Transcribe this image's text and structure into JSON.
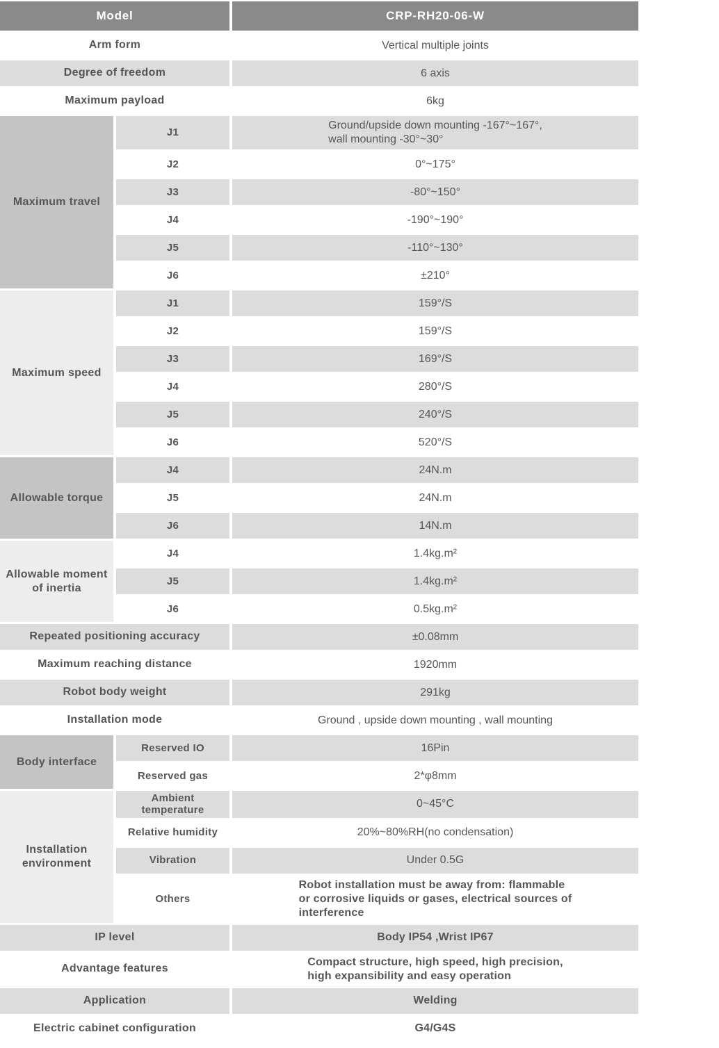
{
  "colors": {
    "header_bg": "#8a8a8a",
    "header_text": "#ffffff",
    "row_gray": "#dcdcdc",
    "row_white": "#ffffff",
    "group_label_medium": "#c4c4c5",
    "group_label_light": "#ededee",
    "text": "#55565a"
  },
  "spec_table": {
    "header": {
      "label": "Model",
      "value": "CRP-RH20-06-W"
    },
    "sections": [
      {
        "kind": "row",
        "label": "Arm form",
        "value": "Vertical multiple joints",
        "shade": "white"
      },
      {
        "kind": "row",
        "label": "Degree of freedom",
        "value": "6 axis",
        "shade": "gray"
      },
      {
        "kind": "row",
        "label": "Maximum payload",
        "value": "6kg",
        "shade": "white"
      },
      {
        "kind": "group",
        "label": "Maximum travel",
        "label_shade": "med",
        "rows": [
          {
            "sub": "J1",
            "value": "Ground/upside down mounting -167°~167°,\nwall mounting -30°~30°",
            "shade": "gray"
          },
          {
            "sub": "J2",
            "value": "0°~175°",
            "shade": "white"
          },
          {
            "sub": "J3",
            "value": "-80°~150°",
            "shade": "gray"
          },
          {
            "sub": "J4",
            "value": "-190°~190°",
            "shade": "white"
          },
          {
            "sub": "J5",
            "value": "-110°~130°",
            "shade": "gray"
          },
          {
            "sub": "J6",
            "value": "±210°",
            "shade": "white"
          }
        ]
      },
      {
        "kind": "group",
        "label": "Maximum speed",
        "label_shade": "light",
        "rows": [
          {
            "sub": "J1",
            "value": "159°/S",
            "shade": "gray"
          },
          {
            "sub": "J2",
            "value": "159°/S",
            "shade": "white"
          },
          {
            "sub": "J3",
            "value": "169°/S",
            "shade": "gray"
          },
          {
            "sub": "J4",
            "value": "280°/S",
            "shade": "white"
          },
          {
            "sub": "J5",
            "value": "240°/S",
            "shade": "gray"
          },
          {
            "sub": "J6",
            "value": "520°/S",
            "shade": "white"
          }
        ]
      },
      {
        "kind": "group",
        "label": "Allowable torque",
        "label_shade": "med",
        "rows": [
          {
            "sub": "J4",
            "value": "24N.m",
            "shade": "gray"
          },
          {
            "sub": "J5",
            "value": "24N.m",
            "shade": "white"
          },
          {
            "sub": "J6",
            "value": "14N.m",
            "shade": "gray"
          }
        ]
      },
      {
        "kind": "group",
        "label": "Allowable moment of inertia",
        "label_shade": "light",
        "rows": [
          {
            "sub": "J4",
            "value": "1.4kg.m²",
            "shade": "white"
          },
          {
            "sub": "J5",
            "value": "1.4kg.m²",
            "shade": "gray"
          },
          {
            "sub": "J6",
            "value": "0.5kg.m²",
            "shade": "white"
          }
        ]
      },
      {
        "kind": "row",
        "label": "Repeated positioning accuracy",
        "value": "±0.08mm",
        "shade": "gray"
      },
      {
        "kind": "row",
        "label": "Maximum reaching distance",
        "value": "1920mm",
        "shade": "white"
      },
      {
        "kind": "row",
        "label": "Robot body weight",
        "value": "291kg",
        "shade": "gray"
      },
      {
        "kind": "row",
        "label": "Installation mode",
        "value": "Ground ,  upside down mounting ,  wall mounting",
        "shade": "white"
      },
      {
        "kind": "group",
        "label": "Body interface",
        "label_shade": "med",
        "rows": [
          {
            "sub": "Reserved IO",
            "value": "16Pin",
            "shade": "gray"
          },
          {
            "sub": "Reserved gas",
            "value": "2*φ8mm",
            "shade": "white"
          }
        ]
      },
      {
        "kind": "group",
        "label": "Installation environment",
        "label_shade": "light",
        "rows": [
          {
            "sub": "Ambient temperature",
            "value": "0~45°C",
            "shade": "gray"
          },
          {
            "sub": "Relative humidity",
            "value": "20%~80%RH(no condensation)",
            "shade": "white"
          },
          {
            "sub": "Vibration",
            "value": "Under 0.5G",
            "shade": "gray"
          },
          {
            "sub": "Others",
            "value": "Robot installation must be away from: flammable\nor corrosive liquids or gases, electrical sources of\ninterference",
            "shade": "white",
            "emph": true
          }
        ]
      },
      {
        "kind": "row",
        "label": "IP level",
        "value": "Body IP54 ,Wrist IP67",
        "shade": "gray",
        "emph": true
      },
      {
        "kind": "row",
        "label": "Advantage features",
        "value": "Compact structure, high speed, high precision,\nhigh expansibility and easy operation",
        "shade": "white",
        "emph": true
      },
      {
        "kind": "row",
        "label": "Application",
        "value": "Welding",
        "shade": "gray",
        "emph": true
      },
      {
        "kind": "row",
        "label": "Electric cabinet configuration",
        "value": "G4/G4S",
        "shade": "white",
        "emph": true
      }
    ]
  }
}
